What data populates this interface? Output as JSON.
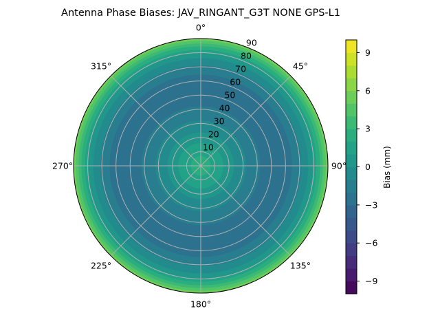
{
  "chart_data": {
    "type": "polar-contour",
    "title": "Antenna Phase Biases: JAV_RINGANT_G3T NONE GPS-L1",
    "colormap": "viridis",
    "colorbar": {
      "label": "Bias (mm)",
      "range": [
        -10,
        10
      ],
      "level_step": 1,
      "ticks": [
        "9",
        "6",
        "3",
        "0",
        "−3",
        "−6",
        "−9"
      ],
      "tick_values": [
        9,
        6,
        3,
        0,
        -3,
        -6,
        -9
      ]
    },
    "radial_axis": {
      "range": [
        0,
        90
      ],
      "ticks": [
        "10",
        "20",
        "30",
        "40",
        "50",
        "60",
        "70",
        "80",
        "90"
      ],
      "tick_values": [
        10,
        20,
        30,
        40,
        50,
        60,
        70,
        80,
        90
      ]
    },
    "angular_axis": {
      "direction": "clockwise",
      "zero": "top",
      "ticks": [
        "0°",
        "45°",
        "90°",
        "135°",
        "180°",
        "225°",
        "270°",
        "315°"
      ],
      "tick_values": [
        0,
        45,
        90,
        135,
        180,
        225,
        270,
        315
      ]
    },
    "grid": true,
    "profile": {
      "zenith": [
        0,
        10,
        20,
        30,
        40,
        50,
        60,
        65,
        70,
        75,
        80,
        85,
        90
      ],
      "bias": [
        2.5,
        1.8,
        0.5,
        -0.8,
        -1.8,
        -2.8,
        -2.5,
        -2.0,
        -1.2,
        -0.3,
        1.0,
        3.0,
        5.5
      ]
    }
  }
}
